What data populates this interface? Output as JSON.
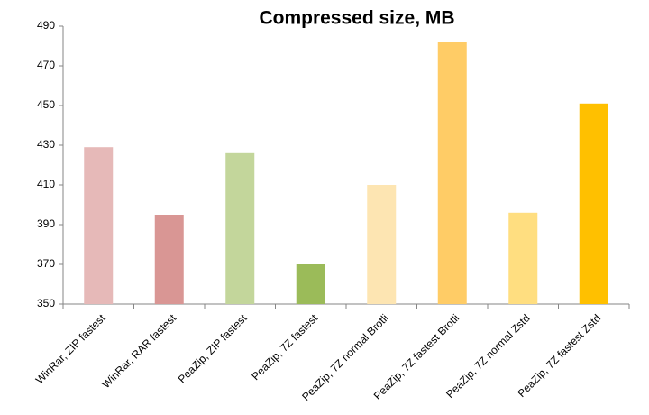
{
  "chart_data": {
    "type": "bar",
    "title": "Compressed size, MB",
    "categories": [
      "WinRar, ZIP fastest",
      "WinRar, RAR fastest",
      "PeaZip, ZIP fastest",
      "PeaZip, 7Z fastest",
      "PeaZip, 7Z normal Brotli",
      "PeaZip, 7Z fastest Brotli",
      "PeaZip, 7Z normal Zstd",
      "PeaZip, 7Z fastest Zstd"
    ],
    "values": [
      429,
      395,
      426,
      370,
      410,
      482,
      396,
      451
    ],
    "colors": [
      "#e6b9b8",
      "#d99694",
      "#c3d69b",
      "#9bbb59",
      "#fde5b2",
      "#ffcc66",
      "#ffde80",
      "#ffc000"
    ],
    "ylim": [
      350,
      490
    ],
    "yticks": [
      350,
      370,
      390,
      410,
      430,
      450,
      470,
      490
    ],
    "grid": false
  }
}
